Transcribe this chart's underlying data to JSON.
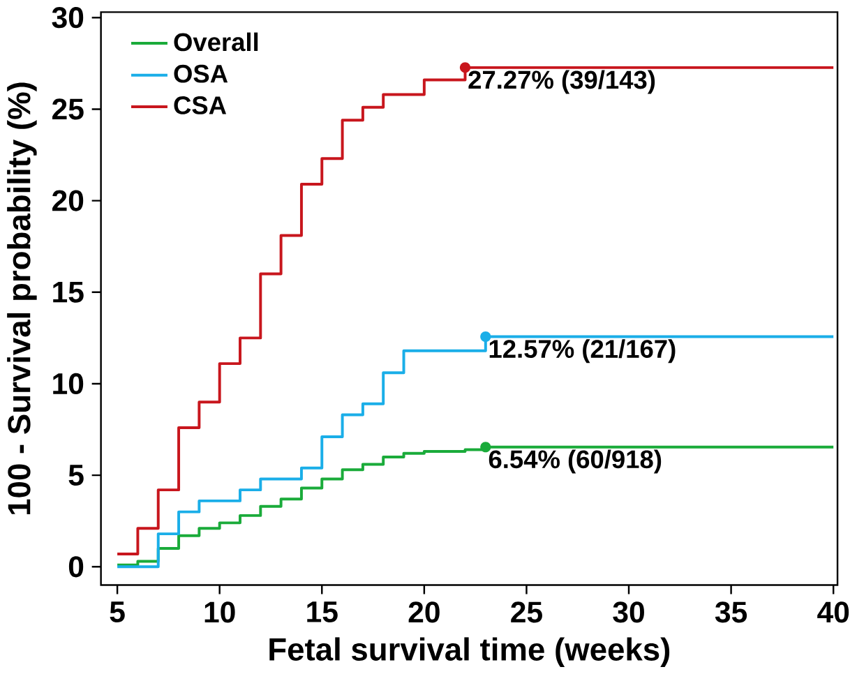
{
  "chart_data": {
    "type": "step",
    "xlabel": "Fetal survival time (weeks)",
    "ylabel": "100 - Survival probability (%)",
    "xlim": [
      4.2,
      40.2
    ],
    "ylim": [
      -1,
      30.3
    ],
    "xticks": [
      5,
      10,
      15,
      20,
      25,
      30,
      35,
      40
    ],
    "yticks": [
      0,
      5,
      10,
      15,
      20,
      25,
      30
    ],
    "grid": false,
    "legend": "top left",
    "marker": "none",
    "line_style": "solid",
    "series": [
      {
        "name": "Overall",
        "color": "#1aab3a",
        "x": [
          5,
          6,
          7,
          8,
          9,
          10,
          11,
          12,
          13,
          14,
          15,
          16,
          17,
          18,
          19,
          20,
          22,
          23,
          40
        ],
        "values": [
          0.1,
          0.3,
          1.0,
          1.7,
          2.1,
          2.4,
          2.8,
          3.3,
          3.7,
          4.3,
          4.8,
          5.3,
          5.6,
          6.0,
          6.2,
          6.3,
          6.4,
          6.54,
          6.54
        ]
      },
      {
        "name": "OSA",
        "color": "#1aaee8",
        "x": [
          5,
          7,
          8,
          9,
          11,
          12,
          14,
          15,
          16,
          17,
          18,
          19,
          23,
          40
        ],
        "values": [
          0,
          1.8,
          3.0,
          3.6,
          4.2,
          4.8,
          5.4,
          7.1,
          8.3,
          8.9,
          10.6,
          11.8,
          12.57,
          12.57
        ]
      },
      {
        "name": "CSA",
        "color": "#c8161d",
        "x": [
          5,
          6,
          7,
          8,
          9,
          10,
          11,
          12,
          13,
          14,
          15,
          16,
          17,
          18,
          20,
          22,
          40
        ],
        "values": [
          0.7,
          2.1,
          4.2,
          7.6,
          9.0,
          11.1,
          12.5,
          16.0,
          18.1,
          20.9,
          22.3,
          24.4,
          25.1,
          25.8,
          26.6,
          27.27,
          27.27
        ]
      }
    ],
    "annotations": [
      "6.54%  (60/918)",
      "12.57%  (21/167)",
      "27.27%  (39/143)"
    ]
  }
}
